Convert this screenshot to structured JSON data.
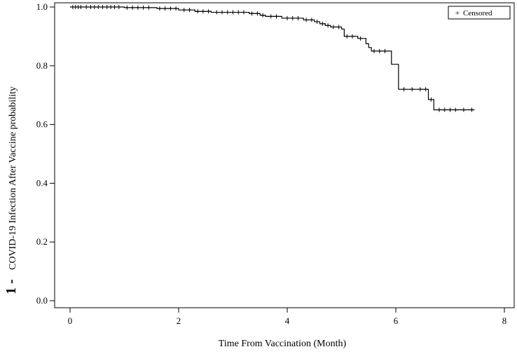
{
  "chart_data": {
    "type": "line",
    "title": "",
    "xlabel": "Time From Vaccination (Month)",
    "ylabel_prefix": "1 -",
    "ylabel": "COVID-19 Infection After Vaccine probability",
    "xlim": [
      0,
      8
    ],
    "ylim": [
      0.0,
      1.0
    ],
    "x_ticks": [
      0,
      2,
      4,
      6,
      8
    ],
    "x_tick_labels": [
      "0",
      "2",
      "4",
      "6",
      "8"
    ],
    "y_ticks": [
      0.0,
      0.2,
      0.4,
      0.6,
      0.8,
      1.0
    ],
    "y_tick_labels": [
      "0.0",
      "0.2",
      "0.4",
      "0.6",
      "0.8",
      "1.0"
    ],
    "grid": false,
    "legend": {
      "placement": "top-right",
      "entries": [
        {
          "marker": "+",
          "label": "Censored"
        }
      ]
    },
    "series": [
      {
        "step": [
          [
            0.0,
            1.0
          ],
          [
            1.0,
            0.998
          ],
          [
            1.6,
            0.995
          ],
          [
            2.0,
            0.99
          ],
          [
            2.3,
            0.985
          ],
          [
            2.6,
            0.982
          ],
          [
            3.3,
            0.978
          ],
          [
            3.5,
            0.972
          ],
          [
            3.6,
            0.968
          ],
          [
            3.9,
            0.962
          ],
          [
            4.3,
            0.956
          ],
          [
            4.5,
            0.95
          ],
          [
            4.6,
            0.943
          ],
          [
            4.7,
            0.937
          ],
          [
            4.8,
            0.932
          ],
          [
            5.0,
            0.925
          ],
          [
            5.05,
            0.9
          ],
          [
            5.3,
            0.893
          ],
          [
            5.45,
            0.875
          ],
          [
            5.5,
            0.862
          ],
          [
            5.55,
            0.85
          ],
          [
            5.92,
            0.805
          ],
          [
            6.05,
            0.72
          ],
          [
            6.6,
            0.685
          ],
          [
            6.7,
            0.65
          ],
          [
            7.45,
            0.65
          ]
        ],
        "censored": [
          [
            0.05,
            1.0
          ],
          [
            0.1,
            1.0
          ],
          [
            0.15,
            1.0
          ],
          [
            0.2,
            1.0
          ],
          [
            0.3,
            1.0
          ],
          [
            0.38,
            1.0
          ],
          [
            0.45,
            1.0
          ],
          [
            0.52,
            1.0
          ],
          [
            0.6,
            1.0
          ],
          [
            0.68,
            1.0
          ],
          [
            0.75,
            1.0
          ],
          [
            0.82,
            1.0
          ],
          [
            0.9,
            1.0
          ],
          [
            1.05,
            0.998
          ],
          [
            1.15,
            0.998
          ],
          [
            1.25,
            0.998
          ],
          [
            1.35,
            0.998
          ],
          [
            1.45,
            0.998
          ],
          [
            1.65,
            0.995
          ],
          [
            1.75,
            0.995
          ],
          [
            1.85,
            0.995
          ],
          [
            1.95,
            0.995
          ],
          [
            2.1,
            0.99
          ],
          [
            2.2,
            0.99
          ],
          [
            2.35,
            0.985
          ],
          [
            2.45,
            0.985
          ],
          [
            2.55,
            0.985
          ],
          [
            2.7,
            0.982
          ],
          [
            2.8,
            0.982
          ],
          [
            2.9,
            0.982
          ],
          [
            3.0,
            0.982
          ],
          [
            3.1,
            0.982
          ],
          [
            3.2,
            0.982
          ],
          [
            3.35,
            0.978
          ],
          [
            3.45,
            0.978
          ],
          [
            3.55,
            0.972
          ],
          [
            3.7,
            0.968
          ],
          [
            3.8,
            0.968
          ],
          [
            4.0,
            0.962
          ],
          [
            4.1,
            0.962
          ],
          [
            4.2,
            0.962
          ],
          [
            4.35,
            0.956
          ],
          [
            4.45,
            0.956
          ],
          [
            4.55,
            0.95
          ],
          [
            4.65,
            0.943
          ],
          [
            4.75,
            0.937
          ],
          [
            4.85,
            0.932
          ],
          [
            4.95,
            0.932
          ],
          [
            5.1,
            0.9
          ],
          [
            5.2,
            0.9
          ],
          [
            5.35,
            0.893
          ],
          [
            5.6,
            0.85
          ],
          [
            5.7,
            0.85
          ],
          [
            5.8,
            0.85
          ],
          [
            6.15,
            0.72
          ],
          [
            6.3,
            0.72
          ],
          [
            6.45,
            0.72
          ],
          [
            6.55,
            0.72
          ],
          [
            6.65,
            0.685
          ],
          [
            6.8,
            0.65
          ],
          [
            6.9,
            0.65
          ],
          [
            7.0,
            0.65
          ],
          [
            7.1,
            0.65
          ],
          [
            7.25,
            0.65
          ],
          [
            7.4,
            0.65
          ]
        ]
      }
    ]
  }
}
